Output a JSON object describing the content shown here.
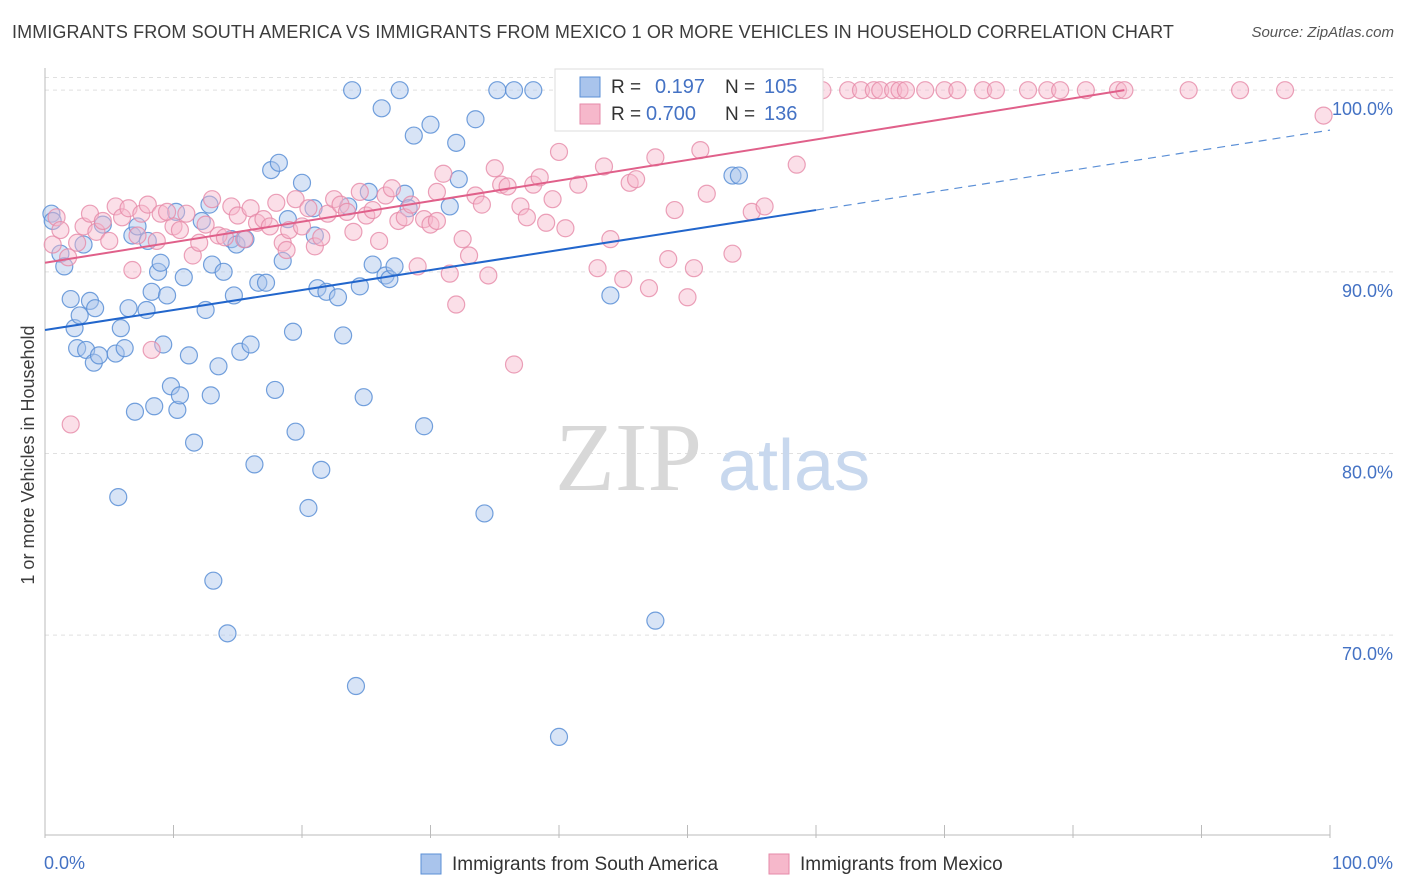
{
  "title": "IMMIGRANTS FROM SOUTH AMERICA VS IMMIGRANTS FROM MEXICO 1 OR MORE VEHICLES IN HOUSEHOLD CORRELATION CHART",
  "source": "Source: ZipAtlas.com",
  "watermark": {
    "zip": "ZIP",
    "atlas": "atlas"
  },
  "colors": {
    "blue_fill": "#a9c4ec",
    "blue_stroke": "#5b8fd6",
    "blue_line": "#2266cc",
    "pink_fill": "#f6b8cb",
    "pink_stroke": "#e68aa8",
    "pink_line": "#e0608a",
    "axis_text": "#4472c4",
    "grid": "#e0e0e0"
  },
  "legend": {
    "r_label": "R =",
    "n_label": "N =",
    "series": [
      {
        "r": "0.197",
        "n": "105"
      },
      {
        "r": "0.700",
        "n": "136"
      }
    ]
  },
  "chart_data": {
    "type": "scatter",
    "xlabel": "",
    "ylabel": "1 or more Vehicles in Household",
    "xlim": [
      0,
      100
    ],
    "ylim": [
      59,
      101
    ],
    "x_tick_labels": [
      "0.0%",
      "100.0%"
    ],
    "y_ticks": [
      70,
      80,
      90,
      100
    ],
    "y_tick_labels": [
      "70.0%",
      "80.0%",
      "90.0%",
      "100.0%"
    ],
    "grid": true,
    "legend_position": "top-center",
    "series": [
      {
        "name": "Immigrants from South America",
        "color": "#5b8fd6",
        "trend": {
          "x": [
            0,
            60
          ],
          "y": [
            86.8,
            93.4
          ],
          "dashed_to": [
            100,
            97.8
          ]
        },
        "points": [
          [
            0.5,
            93.2
          ],
          [
            0.6,
            92.8
          ],
          [
            1.2,
            91.0
          ],
          [
            1.5,
            90.3
          ],
          [
            2.0,
            88.5
          ],
          [
            2.3,
            86.9
          ],
          [
            2.5,
            85.8
          ],
          [
            2.7,
            87.6
          ],
          [
            3.2,
            85.7
          ],
          [
            3.5,
            88.4
          ],
          [
            3.8,
            85.0
          ],
          [
            3.9,
            88.0
          ],
          [
            4.2,
            85.4
          ],
          [
            4.5,
            92.6
          ],
          [
            5.5,
            85.5
          ],
          [
            5.7,
            77.6
          ],
          [
            5.9,
            86.9
          ],
          [
            6.2,
            85.8
          ],
          [
            6.5,
            88.0
          ],
          [
            6.8,
            92.0
          ],
          [
            7.0,
            82.3
          ],
          [
            7.2,
            92.5
          ],
          [
            7.9,
            87.9
          ],
          [
            8.0,
            91.7
          ],
          [
            8.3,
            88.9
          ],
          [
            8.5,
            82.6
          ],
          [
            8.8,
            90.0
          ],
          [
            9.2,
            86.0
          ],
          [
            9.5,
            88.7
          ],
          [
            9.8,
            83.7
          ],
          [
            10.2,
            93.3
          ],
          [
            10.3,
            82.4
          ],
          [
            10.5,
            83.2
          ],
          [
            10.8,
            89.7
          ],
          [
            11.2,
            85.4
          ],
          [
            11.6,
            80.6
          ],
          [
            12.2,
            92.8
          ],
          [
            12.5,
            87.9
          ],
          [
            12.8,
            93.7
          ],
          [
            12.9,
            83.2
          ],
          [
            13.0,
            90.4
          ],
          [
            13.1,
            73.0
          ],
          [
            13.5,
            84.8
          ],
          [
            13.9,
            90.0
          ],
          [
            14.2,
            70.1
          ],
          [
            14.5,
            91.8
          ],
          [
            14.7,
            88.7
          ],
          [
            14.9,
            91.5
          ],
          [
            15.2,
            85.6
          ],
          [
            15.6,
            91.8
          ],
          [
            16.0,
            86.0
          ],
          [
            16.3,
            79.4
          ],
          [
            16.6,
            89.4
          ],
          [
            17.2,
            89.4
          ],
          [
            17.6,
            95.6
          ],
          [
            17.9,
            83.5
          ],
          [
            18.2,
            96.0
          ],
          [
            18.5,
            90.6
          ],
          [
            18.9,
            92.9
          ],
          [
            19.3,
            86.7
          ],
          [
            19.5,
            81.2
          ],
          [
            20.0,
            94.9
          ],
          [
            20.5,
            77.0
          ],
          [
            20.9,
            93.5
          ],
          [
            21.2,
            89.1
          ],
          [
            21.5,
            79.1
          ],
          [
            21.9,
            88.9
          ],
          [
            22.8,
            88.6
          ],
          [
            23.2,
            86.5
          ],
          [
            23.6,
            93.6
          ],
          [
            23.9,
            100.0
          ],
          [
            24.2,
            67.2
          ],
          [
            24.5,
            89.2
          ],
          [
            24.8,
            83.1
          ],
          [
            25.2,
            94.4
          ],
          [
            25.5,
            90.4
          ],
          [
            26.2,
            99.0
          ],
          [
            26.5,
            89.8
          ],
          [
            26.8,
            89.6
          ],
          [
            27.2,
            90.3
          ],
          [
            27.6,
            100.0
          ],
          [
            28.0,
            94.3
          ],
          [
            28.3,
            93.5
          ],
          [
            28.7,
            97.5
          ],
          [
            29.5,
            81.5
          ],
          [
            30.0,
            98.1
          ],
          [
            31.5,
            93.6
          ],
          [
            32.0,
            97.1
          ],
          [
            32.2,
            95.1
          ],
          [
            33.5,
            98.4
          ],
          [
            34.2,
            76.7
          ],
          [
            35.2,
            100.0
          ],
          [
            36.5,
            100.0
          ],
          [
            38.0,
            100.0
          ],
          [
            40.5,
            100.0
          ],
          [
            40.0,
            64.4
          ],
          [
            44.0,
            88.7
          ],
          [
            45.0,
            100.0
          ],
          [
            47.5,
            70.8
          ],
          [
            53.5,
            95.3
          ],
          [
            54.0,
            95.3
          ],
          [
            45.5,
            99.5
          ],
          [
            21.0,
            92.0
          ],
          [
            3.0,
            91.5
          ],
          [
            9.0,
            90.5
          ]
        ]
      },
      {
        "name": "Immigrants from Mexico",
        "color": "#e68aa8",
        "trend": {
          "x": [
            0,
            84
          ],
          "y": [
            90.5,
            100.0
          ]
        },
        "points": [
          [
            0.6,
            91.5
          ],
          [
            0.9,
            93.0
          ],
          [
            1.2,
            92.3
          ],
          [
            1.8,
            90.8
          ],
          [
            2.0,
            81.6
          ],
          [
            2.5,
            91.6
          ],
          [
            3.0,
            92.5
          ],
          [
            3.5,
            93.2
          ],
          [
            4.0,
            92.2
          ],
          [
            4.5,
            92.8
          ],
          [
            5.0,
            91.7
          ],
          [
            5.5,
            93.6
          ],
          [
            6.0,
            93.0
          ],
          [
            6.5,
            93.5
          ],
          [
            6.8,
            90.1
          ],
          [
            7.2,
            92.0
          ],
          [
            7.5,
            93.2
          ],
          [
            8.0,
            93.7
          ],
          [
            8.3,
            85.7
          ],
          [
            8.7,
            91.7
          ],
          [
            9.0,
            93.2
          ],
          [
            9.5,
            93.3
          ],
          [
            10.0,
            92.5
          ],
          [
            10.5,
            92.3
          ],
          [
            11.0,
            93.2
          ],
          [
            11.5,
            90.9
          ],
          [
            12.0,
            91.6
          ],
          [
            12.5,
            92.6
          ],
          [
            13.0,
            94.0
          ],
          [
            13.5,
            92.0
          ],
          [
            14.0,
            91.9
          ],
          [
            14.5,
            93.6
          ],
          [
            15.0,
            93.1
          ],
          [
            15.5,
            91.8
          ],
          [
            16.0,
            93.5
          ],
          [
            16.5,
            92.7
          ],
          [
            17.0,
            92.9
          ],
          [
            17.5,
            92.5
          ],
          [
            18.0,
            93.8
          ],
          [
            18.5,
            91.6
          ],
          [
            19.0,
            92.3
          ],
          [
            19.5,
            94.0
          ],
          [
            20.0,
            92.5
          ],
          [
            20.5,
            93.5
          ],
          [
            21.0,
            91.4
          ],
          [
            21.5,
            91.9
          ],
          [
            22.0,
            93.2
          ],
          [
            22.5,
            94.0
          ],
          [
            23.0,
            93.7
          ],
          [
            23.5,
            93.3
          ],
          [
            24.0,
            92.2
          ],
          [
            24.5,
            94.4
          ],
          [
            25.0,
            93.1
          ],
          [
            25.5,
            93.4
          ],
          [
            26.0,
            91.7
          ],
          [
            26.5,
            94.2
          ],
          [
            27.0,
            94.6
          ],
          [
            27.5,
            92.8
          ],
          [
            28.0,
            93.0
          ],
          [
            28.5,
            93.7
          ],
          [
            29.0,
            90.3
          ],
          [
            29.5,
            92.9
          ],
          [
            30.0,
            92.6
          ],
          [
            30.5,
            94.4
          ],
          [
            31.0,
            95.4
          ],
          [
            31.5,
            89.9
          ],
          [
            32.0,
            88.2
          ],
          [
            32.5,
            91.8
          ],
          [
            33.0,
            90.9
          ],
          [
            33.5,
            94.2
          ],
          [
            34.0,
            93.7
          ],
          [
            34.5,
            89.8
          ],
          [
            35.0,
            95.7
          ],
          [
            35.5,
            94.8
          ],
          [
            36.0,
            94.7
          ],
          [
            36.5,
            84.9
          ],
          [
            37.0,
            93.6
          ],
          [
            37.5,
            93.0
          ],
          [
            38.0,
            94.8
          ],
          [
            38.5,
            95.2
          ],
          [
            39.0,
            92.7
          ],
          [
            39.5,
            94.0
          ],
          [
            40.0,
            96.6
          ],
          [
            40.5,
            92.4
          ],
          [
            41.5,
            94.8
          ],
          [
            42.0,
            99.8
          ],
          [
            43.0,
            90.2
          ],
          [
            43.5,
            95.8
          ],
          [
            44.0,
            91.8
          ],
          [
            45.0,
            89.6
          ],
          [
            45.5,
            94.9
          ],
          [
            46.0,
            95.1
          ],
          [
            47.0,
            89.1
          ],
          [
            47.5,
            96.3
          ],
          [
            48.0,
            100.0
          ],
          [
            48.5,
            90.7
          ],
          [
            49.0,
            93.4
          ],
          [
            50.0,
            88.6
          ],
          [
            50.5,
            90.2
          ],
          [
            51.0,
            96.7
          ],
          [
            51.5,
            94.3
          ],
          [
            52.0,
            100.0
          ],
          [
            53.0,
            99.8
          ],
          [
            53.5,
            91.0
          ],
          [
            54.5,
            100.0
          ],
          [
            55.0,
            93.3
          ],
          [
            55.5,
            98.5
          ],
          [
            56.0,
            93.6
          ],
          [
            57.5,
            100.0
          ],
          [
            58.5,
            95.9
          ],
          [
            59.0,
            100.0
          ],
          [
            60.5,
            100.0
          ],
          [
            62.5,
            100.0
          ],
          [
            63.5,
            100.0
          ],
          [
            64.5,
            100.0
          ],
          [
            65.0,
            100.0
          ],
          [
            66.0,
            100.0
          ],
          [
            66.5,
            100.0
          ],
          [
            67.0,
            100.0
          ],
          [
            68.5,
            100.0
          ],
          [
            70.0,
            100.0
          ],
          [
            71.0,
            100.0
          ],
          [
            73.0,
            100.0
          ],
          [
            74.0,
            100.0
          ],
          [
            76.5,
            100.0
          ],
          [
            78.0,
            100.0
          ],
          [
            79.0,
            100.0
          ],
          [
            81.0,
            100.0
          ],
          [
            83.5,
            100.0
          ],
          [
            84.0,
            100.0
          ],
          [
            89.0,
            100.0
          ],
          [
            93.0,
            100.0
          ],
          [
            96.5,
            100.0
          ],
          [
            99.5,
            98.6
          ],
          [
            30.5,
            92.8
          ],
          [
            18.8,
            91.2
          ]
        ]
      }
    ]
  }
}
